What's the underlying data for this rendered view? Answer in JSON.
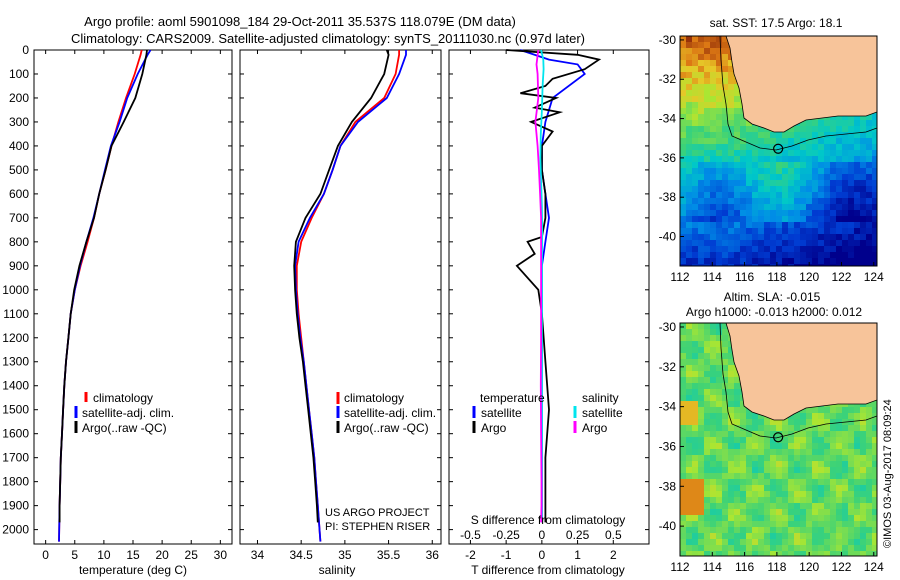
{
  "header": {
    "line1": "Argo profile: aoml 5901098_184 29-Oct-2011 35.537S 118.079E (DM data)",
    "line2": "Climatology: CARS2009. Satellite-adjusted climatology: synTS_20111030.nc (0.97d later)"
  },
  "colors": {
    "climatology": "#ff0000",
    "satellite": "#0000ff",
    "argo": "#000000",
    "salinity_satellite": "#00e5ee",
    "salinity_argo": "#ff00ff",
    "land": "#f7c49a"
  },
  "chart_data": [
    {
      "type": "line",
      "id": "temperature",
      "xlabel": "temperature (deg C)",
      "xticks": [
        "0",
        "5",
        "10",
        "15",
        "20",
        "25",
        "30"
      ],
      "xlim": [
        -2,
        32
      ],
      "ylim": [
        0,
        2060
      ],
      "yticks": [
        "0",
        "100",
        "200",
        "300",
        "400",
        "500",
        "600",
        "700",
        "800",
        "900",
        "1000",
        "1100",
        "1200",
        "1300",
        "1400",
        "1500",
        "1600",
        "1700",
        "1800",
        "1900",
        "2000"
      ],
      "legend": [
        "climatology",
        "satellite-adj. clim.",
        "Argo(..raw -QC)"
      ],
      "series": [
        {
          "name": "climatology",
          "color": "#ff0000",
          "x": [
            16.5,
            16.3,
            15.3,
            13.8,
            12.5,
            11.3,
            10.3,
            9.2,
            8.3,
            7.2,
            6.0,
            5.0,
            4.3,
            3.9,
            3.5,
            3.2,
            3.0,
            2.8,
            2.6,
            2.5,
            2.4,
            2.3
          ],
          "y": [
            0,
            20,
            100,
            200,
            300,
            400,
            500,
            600,
            700,
            800,
            900,
            1000,
            1100,
            1200,
            1300,
            1400,
            1500,
            1600,
            1700,
            1800,
            1900,
            2050
          ]
        },
        {
          "name": "satellite-adj. clim.",
          "color": "#0000ff",
          "x": [
            18.0,
            17.5,
            15.8,
            14.0,
            12.7,
            11.2,
            10.2,
            9.2,
            8.2,
            7.0,
            5.9,
            5.0,
            4.3,
            3.9,
            3.5,
            3.2,
            3.0,
            2.8,
            2.6,
            2.5,
            2.4,
            2.3
          ],
          "y": [
            0,
            20,
            100,
            200,
            300,
            400,
            500,
            600,
            700,
            800,
            900,
            1000,
            1100,
            1200,
            1300,
            1400,
            1500,
            1600,
            1700,
            1800,
            1900,
            2050
          ]
        },
        {
          "name": "Argo(..raw -QC)",
          "color": "#000000",
          "x": [
            17.4,
            17.3,
            16.6,
            15.4,
            13.4,
            11.3,
            10.3,
            9.2,
            8.3,
            7.0,
            5.8,
            4.9,
            4.3,
            3.9,
            3.5,
            3.2,
            3.0,
            2.8,
            2.6,
            2.5,
            2.4,
            2.4
          ],
          "y": [
            0,
            20,
            100,
            200,
            300,
            400,
            500,
            600,
            700,
            800,
            900,
            1000,
            1100,
            1200,
            1300,
            1400,
            1500,
            1600,
            1700,
            1800,
            1900,
            1970
          ]
        }
      ]
    },
    {
      "type": "line",
      "id": "salinity",
      "xlabel": "salinity",
      "xticks": [
        "34",
        "34.5",
        "35",
        "35.5",
        "36"
      ],
      "xlim": [
        33.8,
        36.1
      ],
      "ylim": [
        0,
        2060
      ],
      "legend": [
        "climatology",
        "satellite-adj. clim.",
        "Argo(..raw -QC)"
      ],
      "credit": [
        "US ARGO PROJECT",
        "PI: STEPHEN RISER"
      ],
      "series": [
        {
          "name": "climatology",
          "color": "#ff0000",
          "x": [
            35.62,
            35.62,
            35.58,
            35.45,
            35.12,
            34.95,
            34.86,
            34.76,
            34.62,
            34.5,
            34.45,
            34.45,
            34.47,
            34.5,
            34.53,
            34.56,
            34.59,
            34.62,
            34.65,
            34.67,
            34.69,
            34.72
          ],
          "y": [
            0,
            20,
            100,
            200,
            300,
            400,
            500,
            600,
            700,
            800,
            900,
            1000,
            1100,
            1200,
            1300,
            1400,
            1500,
            1600,
            1700,
            1800,
            1900,
            2050
          ]
        },
        {
          "name": "satellite-adj. clim.",
          "color": "#0000ff",
          "x": [
            35.7,
            35.7,
            35.62,
            35.48,
            35.15,
            34.95,
            34.86,
            34.76,
            34.6,
            34.47,
            34.43,
            34.44,
            34.46,
            34.49,
            34.53,
            34.56,
            34.59,
            34.62,
            34.65,
            34.67,
            34.69,
            34.72
          ],
          "y": [
            0,
            20,
            100,
            200,
            300,
            400,
            500,
            600,
            700,
            800,
            900,
            1000,
            1100,
            1200,
            1300,
            1400,
            1500,
            1600,
            1700,
            1800,
            1900,
            2050
          ]
        },
        {
          "name": "Argo(..raw -QC)",
          "color": "#000000",
          "x": [
            35.48,
            35.5,
            35.45,
            35.3,
            35.08,
            34.92,
            34.82,
            34.72,
            34.55,
            34.44,
            34.42,
            34.43,
            34.45,
            34.48,
            34.52,
            34.55,
            34.58,
            34.61,
            34.64,
            34.66,
            34.68,
            34.69
          ],
          "y": [
            0,
            20,
            100,
            200,
            300,
            400,
            500,
            600,
            700,
            800,
            900,
            1000,
            1100,
            1200,
            1300,
            1400,
            1500,
            1600,
            1700,
            1800,
            1900,
            1970
          ]
        }
      ]
    },
    {
      "type": "line",
      "id": "difference",
      "title": "S difference from climatology",
      "xlabel": "T difference from climatology",
      "xticks": [
        "-2",
        "-1",
        "0",
        "1",
        "2"
      ],
      "xlim": [
        -2.6,
        3.0
      ],
      "top_ticks": [
        "-0.5",
        "-0.25",
        "0",
        "0.25",
        "0.5"
      ],
      "top_lim": [
        -0.65,
        0.75
      ],
      "legend": {
        "temperature_heading": "temperature",
        "salinity_heading": "salinity",
        "temperature": [
          "satellite",
          "Argo"
        ],
        "salinity": [
          "satellite",
          "Argo"
        ]
      },
      "series": [
        {
          "name": "satellite",
          "color": "#0000ff",
          "x": [
            -0.6,
            0.2,
            1.0,
            1.2,
            0.3,
            0.1,
            0.0,
            0.0,
            0.1,
            0.2,
            0.1,
            0.0,
            0.0,
            0.0,
            0.0,
            0.0,
            0.0,
            0.0,
            0.0,
            0.0,
            0.0
          ],
          "y": [
            0,
            40,
            60,
            100,
            200,
            300,
            400,
            500,
            600,
            700,
            800,
            900,
            1000,
            1100,
            1200,
            1400,
            1600,
            1700,
            1800,
            1900,
            1970
          ]
        },
        {
          "name": "Argo",
          "color": "#000000",
          "x": [
            -1.0,
            1.0,
            1.6,
            1.2,
            0.3,
            0.1,
            -0.6,
            0.4,
            -0.2,
            0.5,
            -0.3,
            0.3,
            0.0,
            0.0,
            0.1,
            0.1,
            0.0,
            -0.4,
            -0.2,
            -0.7,
            -0.1,
            0.0,
            0.1,
            0.2,
            0.1,
            0.1,
            0.1
          ],
          "y": [
            0,
            20,
            40,
            80,
            120,
            150,
            180,
            200,
            240,
            260,
            300,
            340,
            400,
            500,
            600,
            700,
            780,
            800,
            850,
            900,
            1000,
            1100,
            1300,
            1500,
            1700,
            1900,
            1970
          ]
        },
        {
          "name": "satellite",
          "color": "#00e5ee",
          "x": [
            -0.02,
            0.04,
            0.05,
            0.02,
            0.0,
            -0.03,
            -0.04,
            -0.02,
            0.0,
            0.01,
            0.0,
            0.0,
            0.0,
            0.0,
            0.0,
            0.0,
            0.0,
            0.0
          ],
          "y": [
            0,
            40,
            80,
            150,
            250,
            350,
            450,
            550,
            650,
            750,
            900,
            1000,
            1200,
            1400,
            1600,
            1800,
            1900,
            1970
          ]
        },
        {
          "name": "Argo",
          "color": "#ff00ff",
          "x": [
            -0.1,
            -0.15,
            -0.12,
            -0.1,
            -0.18,
            -0.12,
            -0.08,
            -0.05,
            -0.02,
            -0.02,
            -0.02,
            -0.02,
            -0.03,
            -0.02,
            -0.01,
            -0.01,
            -0.02
          ],
          "y": [
            0,
            60,
            100,
            200,
            300,
            400,
            500,
            600,
            700,
            800,
            1000,
            1200,
            1400,
            1600,
            1800,
            1900,
            1970
          ]
        }
      ]
    },
    {
      "type": "heatmap",
      "id": "sst-map",
      "title": "sat. SST: 17.5 Argo: 18.1",
      "xticks": [
        "112",
        "114",
        "116",
        "118",
        "120",
        "122",
        "124"
      ],
      "yticks": [
        "-30",
        "-32",
        "-34",
        "-36",
        "-38",
        "-40"
      ],
      "xlim": [
        112,
        124.2
      ],
      "ylim": [
        -41.5,
        -29.8
      ],
      "float_position": {
        "lon": 118.079,
        "lat": -35.537
      }
    },
    {
      "type": "heatmap",
      "id": "sla-map",
      "title": "Altim. SLA: -0.015",
      "subtitle": "Argo h1000: -0.013 h2000: 0.012",
      "xticks": [
        "112",
        "114",
        "116",
        "118",
        "120",
        "122",
        "124"
      ],
      "yticks": [
        "-30",
        "-32",
        "-34",
        "-36",
        "-38",
        "-40"
      ],
      "xlim": [
        112,
        124.2
      ],
      "ylim": [
        -41.5,
        -29.8
      ],
      "float_position": {
        "lon": 118.079,
        "lat": -35.537
      }
    }
  ],
  "credit_vertical": "©IMOS 03-Aug-2017 08:09:24"
}
